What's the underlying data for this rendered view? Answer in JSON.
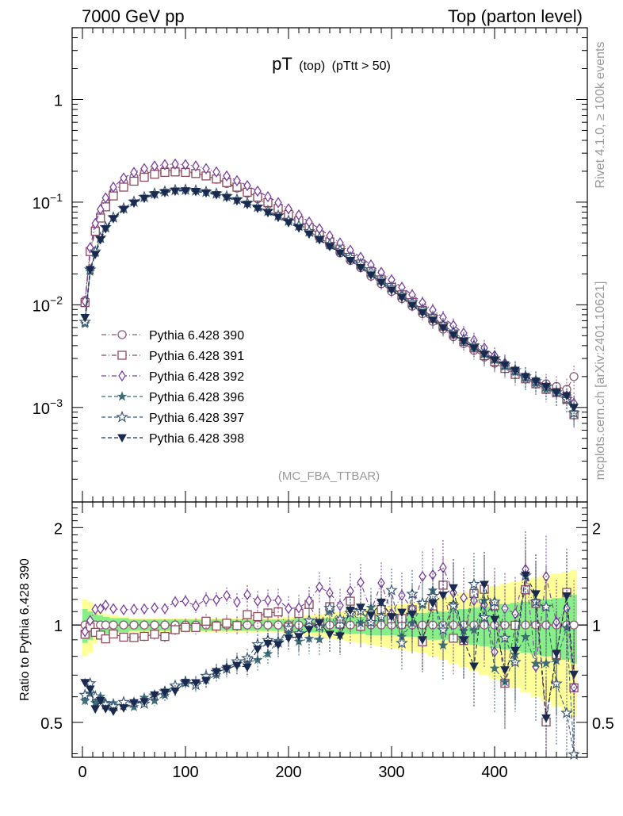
{
  "header": {
    "left": "7000 GeV pp",
    "right": "Top (parton level)"
  },
  "side_labels": {
    "rivet": "Rivet 4.1.0, ≥ 100k events",
    "mcplots": "mcplots.cern.ch [arXiv:2401.10621]"
  },
  "chart_data": [
    {
      "type": "line",
      "panel": "main",
      "title_main": "pT",
      "title_sub": "(top)",
      "title_cut": "(pTtt > 50)",
      "watermark": "(MC_FBA_TTBAR)",
      "xlabel": "",
      "ylabel": "",
      "xlim": [
        -10,
        490
      ],
      "ylim": [
        0.00012,
        5
      ],
      "yscale": "log",
      "yticks": [
        {
          "value": 1,
          "label": "1"
        },
        {
          "value": 0.1,
          "label": "10",
          "exp": "−1"
        },
        {
          "value": 0.01,
          "label": "10",
          "exp": "−2"
        },
        {
          "value": 0.001,
          "label": "10",
          "exp": "−3"
        }
      ],
      "legend_position": "bottom-left",
      "x": [
        2.5,
        7.5,
        12.5,
        17.5,
        22.5,
        30,
        40,
        50,
        60,
        70,
        80,
        90,
        100,
        110,
        120,
        130,
        140,
        150,
        160,
        170,
        180,
        190,
        200,
        210,
        220,
        230,
        240,
        250,
        260,
        270,
        280,
        290,
        300,
        310,
        320,
        330,
        340,
        350,
        360,
        370,
        380,
        390,
        400,
        410,
        420,
        430,
        440,
        450,
        460,
        470,
        477
      ],
      "series": [
        {
          "name": "Pythia 6.428 390",
          "marker": "circle-open",
          "color": "#8e5b79",
          "values": [
            0.011,
            0.034,
            0.055,
            0.075,
            0.098,
            0.125,
            0.155,
            0.175,
            0.19,
            0.2,
            0.205,
            0.205,
            0.2,
            0.192,
            0.18,
            0.167,
            0.152,
            0.137,
            0.122,
            0.108,
            0.095,
            0.083,
            0.072,
            0.062,
            0.053,
            0.045,
            0.038,
            0.032,
            0.027,
            0.023,
            0.019,
            0.016,
            0.0135,
            0.0115,
            0.0097,
            0.0082,
            0.0069,
            0.0058,
            0.0049,
            0.0042,
            0.0036,
            0.0031,
            0.0027,
            0.0024,
            0.0021,
            0.0019,
            0.0018,
            0.0017,
            0.0016,
            0.0015,
            0.002
          ]
        },
        {
          "name": "Pythia 6.428 391",
          "marker": "square-open",
          "color": "#8b4a5c",
          "values": [
            0.0105,
            0.033,
            0.052,
            0.07,
            0.09,
            0.115,
            0.14,
            0.16,
            0.175,
            0.187,
            0.195,
            0.197,
            0.195,
            0.19,
            0.18,
            0.168,
            0.155,
            0.14,
            0.125,
            0.112,
            0.099,
            0.087,
            0.076,
            0.066,
            0.057,
            0.048,
            0.041,
            0.035,
            0.029,
            0.025,
            0.021,
            0.0175,
            0.0148,
            0.0125,
            0.0105,
            0.0088,
            0.0074,
            0.0062,
            0.0052,
            0.0044,
            0.0038,
            0.0032,
            0.0028,
            0.0024,
            0.0021,
            0.0019,
            0.0017,
            0.0015,
            0.0014,
            0.0012,
            0.00085
          ]
        },
        {
          "name": "Pythia 6.428 392",
          "marker": "diamond-open",
          "color": "#7b3f9e",
          "values": [
            0.0108,
            0.036,
            0.062,
            0.085,
            0.11,
            0.14,
            0.172,
            0.195,
            0.212,
            0.225,
            0.232,
            0.235,
            0.232,
            0.225,
            0.212,
            0.197,
            0.18,
            0.162,
            0.145,
            0.128,
            0.113,
            0.099,
            0.086,
            0.075,
            0.064,
            0.055,
            0.047,
            0.04,
            0.034,
            0.029,
            0.0245,
            0.0207,
            0.0175,
            0.0148,
            0.0125,
            0.0105,
            0.0089,
            0.0075,
            0.0063,
            0.0053,
            0.0045,
            0.0038,
            0.0032,
            0.0027,
            0.0023,
            0.002,
            0.0018,
            0.0016,
            0.0014,
            0.0013,
            0.0011
          ]
        },
        {
          "name": "Pythia 6.428 396",
          "marker": "star-small",
          "color": "#3f6e78",
          "values": [
            0.0065,
            0.021,
            0.032,
            0.044,
            0.056,
            0.07,
            0.086,
            0.1,
            0.111,
            0.12,
            0.126,
            0.13,
            0.131,
            0.13,
            0.126,
            0.12,
            0.113,
            0.105,
            0.097,
            0.089,
            0.081,
            0.073,
            0.065,
            0.058,
            0.051,
            0.044,
            0.038,
            0.033,
            0.028,
            0.024,
            0.02,
            0.017,
            0.0144,
            0.0122,
            0.0103,
            0.0087,
            0.0073,
            0.0062,
            0.0052,
            0.0044,
            0.0038,
            0.0033,
            0.0029,
            0.0025,
            0.0022,
            0.0019,
            0.0017,
            0.0015,
            0.0014,
            0.0013,
            0.0009
          ]
        },
        {
          "name": "Pythia 6.428 397",
          "marker": "star-open",
          "color": "#3d5a7a",
          "values": [
            0.0068,
            0.022,
            0.033,
            0.045,
            0.057,
            0.071,
            0.087,
            0.101,
            0.112,
            0.121,
            0.127,
            0.131,
            0.132,
            0.13,
            0.126,
            0.121,
            0.114,
            0.106,
            0.098,
            0.09,
            0.082,
            0.074,
            0.066,
            0.059,
            0.052,
            0.045,
            0.039,
            0.034,
            0.029,
            0.025,
            0.021,
            0.0175,
            0.0148,
            0.0125,
            0.0106,
            0.009,
            0.0076,
            0.0064,
            0.0054,
            0.0046,
            0.004,
            0.0034,
            0.003,
            0.0026,
            0.0023,
            0.002,
            0.0018,
            0.0016,
            0.0014,
            0.0012,
            0.00088
          ]
        },
        {
          "name": "Pythia 6.428 398",
          "marker": "triangle-down-filled",
          "color": "#1a2a4e",
          "values": [
            0.0075,
            0.022,
            0.031,
            0.043,
            0.055,
            0.069,
            0.085,
            0.098,
            0.109,
            0.118,
            0.124,
            0.128,
            0.129,
            0.127,
            0.123,
            0.118,
            0.111,
            0.103,
            0.095,
            0.087,
            0.079,
            0.071,
            0.063,
            0.056,
            0.049,
            0.043,
            0.037,
            0.032,
            0.027,
            0.023,
            0.0195,
            0.0165,
            0.0139,
            0.0118,
            0.0099,
            0.0084,
            0.0071,
            0.006,
            0.0051,
            0.0044,
            0.0038,
            0.0033,
            0.0029,
            0.0026,
            0.0023,
            0.002,
            0.0018,
            0.0016,
            0.0014,
            0.0013,
            0.001
          ]
        }
      ]
    },
    {
      "type": "line",
      "panel": "ratio",
      "ylabel": "Ratio to Pythia 6.428 390",
      "xlim": [
        -10,
        490
      ],
      "ylim": [
        0.39,
        2.4
      ],
      "yscale": "log",
      "yticks": [
        {
          "value": 0.5,
          "label": "0.5"
        },
        {
          "value": 1,
          "label": "1"
        },
        {
          "value": 2,
          "label": "2"
        }
      ],
      "xticks": [
        0,
        100,
        200,
        300,
        400
      ],
      "reference_line": 1,
      "band_stat_halfwidth": [
        0.12,
        0.1,
        0.08,
        0.07,
        0.06,
        0.05,
        0.05,
        0.04,
        0.04,
        0.04,
        0.04,
        0.04,
        0.04,
        0.04,
        0.04,
        0.04,
        0.04,
        0.04,
        0.04,
        0.04,
        0.04,
        0.04,
        0.04,
        0.05,
        0.05,
        0.05,
        0.05,
        0.05,
        0.06,
        0.06,
        0.07,
        0.07,
        0.07,
        0.08,
        0.08,
        0.09,
        0.1,
        0.1,
        0.11,
        0.12,
        0.13,
        0.14,
        0.15,
        0.16,
        0.17,
        0.18,
        0.19,
        0.2,
        0.21,
        0.22,
        0.24
      ],
      "band_total_halfwidth": [
        0.2,
        0.18,
        0.12,
        0.1,
        0.08,
        0.07,
        0.06,
        0.05,
        0.05,
        0.05,
        0.05,
        0.05,
        0.05,
        0.05,
        0.05,
        0.05,
        0.05,
        0.05,
        0.05,
        0.05,
        0.05,
        0.05,
        0.06,
        0.06,
        0.07,
        0.08,
        0.09,
        0.1,
        0.11,
        0.12,
        0.13,
        0.14,
        0.15,
        0.16,
        0.17,
        0.18,
        0.2,
        0.22,
        0.24,
        0.26,
        0.28,
        0.3,
        0.32,
        0.34,
        0.36,
        0.38,
        0.4,
        0.42,
        0.44,
        0.46,
        0.48
      ],
      "band_colors": {
        "stat": "#88ee88",
        "total": "#ffff99"
      }
    }
  ]
}
